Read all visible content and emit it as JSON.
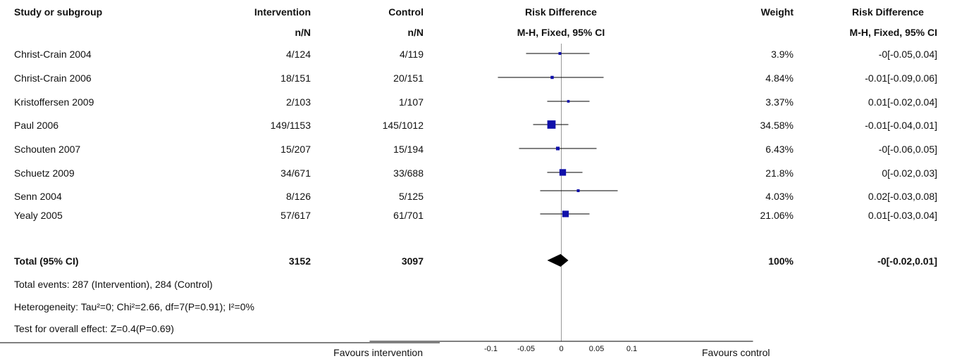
{
  "headers": {
    "study": "Study or subgroup",
    "intervention": "Intervention",
    "intervention_sub": "n/N",
    "control": "Control",
    "control_sub": "n/N",
    "plot": "Risk Difference",
    "plot_sub": "M-H, Fixed, 95% CI",
    "weight": "Weight",
    "effect": "Risk Difference",
    "effect_sub": "M-H, Fixed, 95% CI"
  },
  "rows": [
    {
      "study": "Christ-Crain 2004",
      "intervention": "4/124",
      "control": "4/119",
      "weight": "3.9%",
      "effect": "-0[-0.05,0.04]"
    },
    {
      "study": "Christ-Crain 2006",
      "intervention": "18/151",
      "control": "20/151",
      "weight": "4.84%",
      "effect": "-0.01[-0.09,0.06]"
    },
    {
      "study": "Kristoffersen 2009",
      "intervention": "2/103",
      "control": "1/107",
      "weight": "3.37%",
      "effect": "0.01[-0.02,0.04]"
    },
    {
      "study": "Paul 2006",
      "intervention": "149/1153",
      "control": "145/1012",
      "weight": "34.58%",
      "effect": "-0.01[-0.04,0.01]"
    },
    {
      "study": "Schouten 2007",
      "intervention": "15/207",
      "control": "15/194",
      "weight": "6.43%",
      "effect": "-0[-0.06,0.05]"
    },
    {
      "study": "Schuetz 2009",
      "intervention": "34/671",
      "control": "33/688",
      "weight": "21.8%",
      "effect": "0[-0.02,0.03]"
    },
    {
      "study": "Senn 2004",
      "intervention": "8/126",
      "control": "5/125",
      "weight": "4.03%",
      "effect": "0.02[-0.03,0.08]"
    },
    {
      "study": "Yealy 2005",
      "intervention": "57/617",
      "control": "61/701",
      "weight": "21.06%",
      "effect": "0.01[-0.03,0.04]"
    }
  ],
  "total": {
    "label": "Total (95% CI)",
    "intervention": "3152",
    "control": "3097",
    "weight": "100%",
    "effect": "-0[-0.02,0.01]"
  },
  "footnotes": {
    "events": "Total events: 287 (Intervention), 284 (Control)",
    "heterogeneity": "Heterogeneity: Tau²=0; Chi²=2.66, df=7(P=0.91); I²=0%",
    "overall": "Test for overall effect: Z=0.4(P=0.69)"
  },
  "axis": {
    "favours_left": "Favours intervention",
    "favours_right": "Favours control"
  },
  "chart_data": {
    "type": "forest",
    "xlim": [
      -0.2,
      0.2
    ],
    "xticks": [
      -0.1,
      -0.05,
      0,
      0.05,
      0.1
    ],
    "xtick_labels": [
      "-0.1",
      "-0.05",
      "0",
      "0.05",
      "0.1"
    ],
    "studies": [
      {
        "name": "Christ-Crain 2004",
        "est": -0.002,
        "lo": -0.05,
        "hi": 0.04,
        "weight": 3.9
      },
      {
        "name": "Christ-Crain 2006",
        "est": -0.013,
        "lo": -0.09,
        "hi": 0.06,
        "weight": 4.84
      },
      {
        "name": "Kristoffersen 2009",
        "est": 0.01,
        "lo": -0.02,
        "hi": 0.04,
        "weight": 3.37
      },
      {
        "name": "Paul 2006",
        "est": -0.014,
        "lo": -0.04,
        "hi": 0.01,
        "weight": 34.58
      },
      {
        "name": "Schouten 2007",
        "est": -0.005,
        "lo": -0.06,
        "hi": 0.05,
        "weight": 6.43
      },
      {
        "name": "Schuetz 2009",
        "est": 0.002,
        "lo": -0.02,
        "hi": 0.03,
        "weight": 21.8
      },
      {
        "name": "Senn 2004",
        "est": 0.024,
        "lo": -0.03,
        "hi": 0.08,
        "weight": 4.03
      },
      {
        "name": "Yealy 2005",
        "est": 0.006,
        "lo": -0.03,
        "hi": 0.04,
        "weight": 21.06
      }
    ],
    "total": {
      "est": -0.001,
      "lo": -0.02,
      "hi": 0.01
    },
    "colors": {
      "marker": "#1010aa",
      "line": "#000000",
      "diamond": "#000000",
      "zero_line": "#999999"
    }
  }
}
